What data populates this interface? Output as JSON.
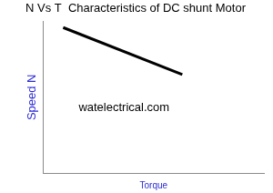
{
  "chart_data": {
    "type": "line",
    "title": "N Vs T  Characteristics of DC shunt Motor",
    "x_label": "Torque",
    "y_label": "Speed N",
    "x": [
      9,
      63
    ],
    "values": [
      96,
      65
    ],
    "color": "#000000",
    "xlim": [
      0,
      100
    ],
    "ylim": [
      0,
      100
    ],
    "tick_labels": false,
    "grid": false,
    "annotations": [
      "watelectrical.com"
    ]
  }
}
